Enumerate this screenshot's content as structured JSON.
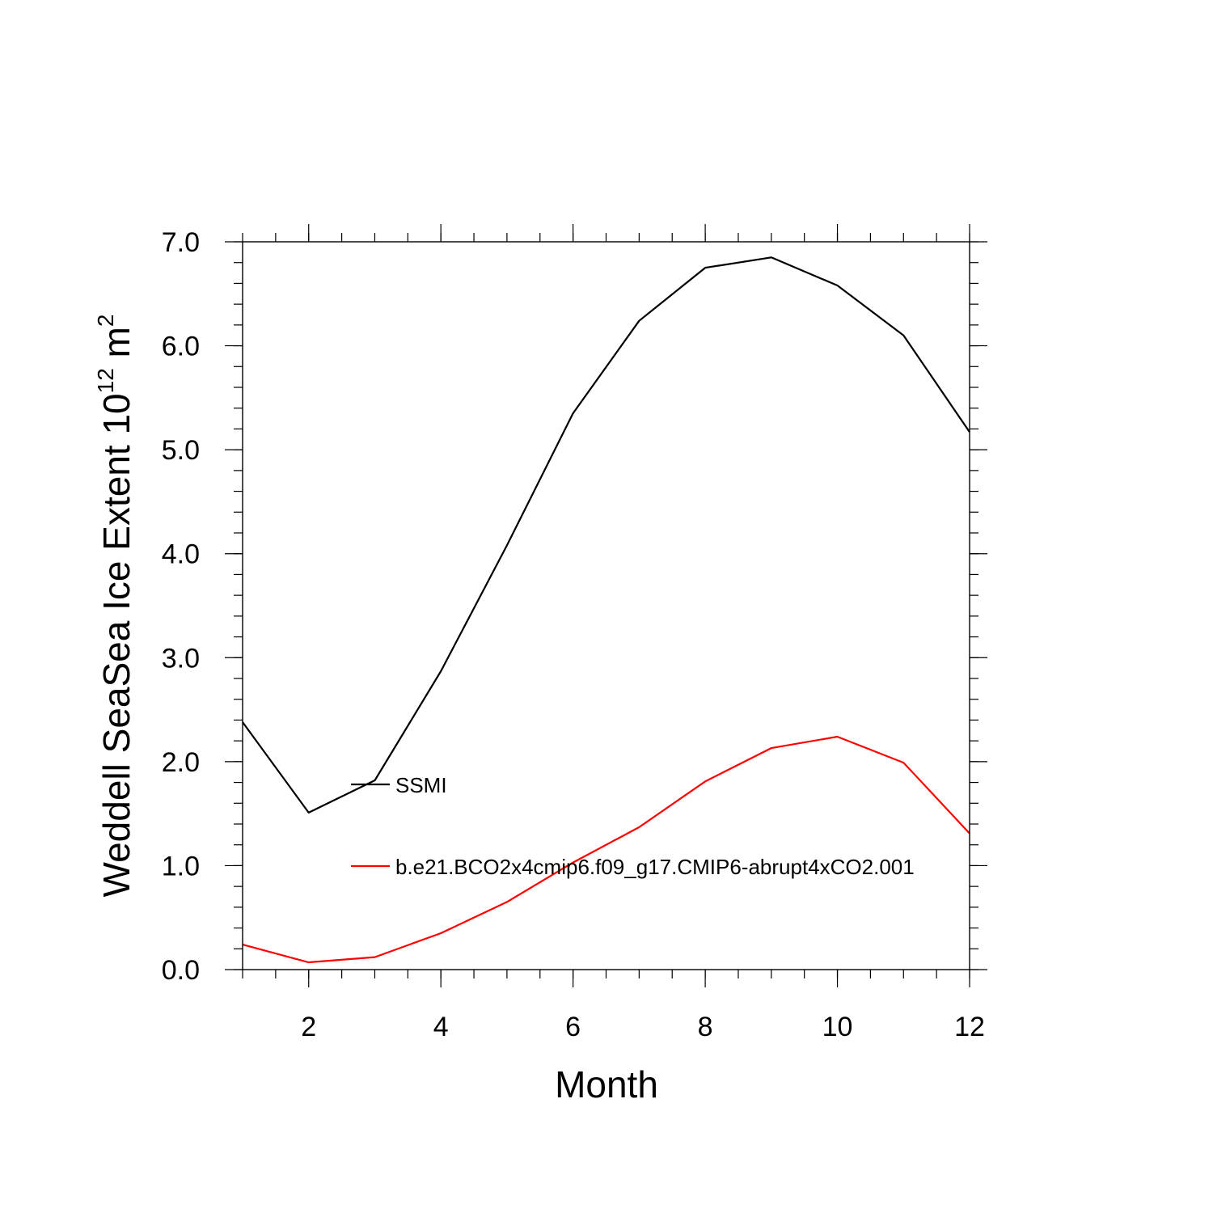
{
  "chart_data": {
    "type": "line",
    "title": "",
    "xlabel": "Month",
    "ylabel": {
      "prefix": "Weddell SeaSea Ice Extent 10",
      "superscript1": "12",
      "unit": " m",
      "superscript2": "2"
    },
    "xlim": [
      1,
      12
    ],
    "ylim": [
      0.0,
      7.0
    ],
    "x_ticks": [
      2,
      4,
      6,
      8,
      10,
      12
    ],
    "x_tick_labels": [
      "2",
      "4",
      "6",
      "8",
      "10",
      "12"
    ],
    "y_ticks": [
      0,
      1,
      2,
      3,
      4,
      5,
      6,
      7
    ],
    "y_tick_labels": [
      "0.0",
      "1.0",
      "2.0",
      "3.0",
      "4.0",
      "5.0",
      "6.0",
      "7.0"
    ],
    "x": [
      1,
      2,
      3,
      4,
      5,
      6,
      7,
      8,
      9,
      10,
      11,
      12
    ],
    "series": [
      {
        "name": "SSMI",
        "color": "#000000",
        "values": [
          2.38,
          1.51,
          1.82,
          2.87,
          4.08,
          5.35,
          6.24,
          6.75,
          6.85,
          6.58,
          6.1,
          5.17
        ]
      },
      {
        "name": "b.e21.BCO2x4cmip6.f09_g17.CMIP6-abrupt4xCO2.001",
        "color": "#ff0000",
        "values": [
          0.24,
          0.07,
          0.12,
          0.35,
          0.65,
          1.03,
          1.37,
          1.81,
          2.13,
          2.24,
          1.99,
          1.31
        ]
      }
    ],
    "grid": false,
    "legend_position": "inside-left-lower"
  }
}
